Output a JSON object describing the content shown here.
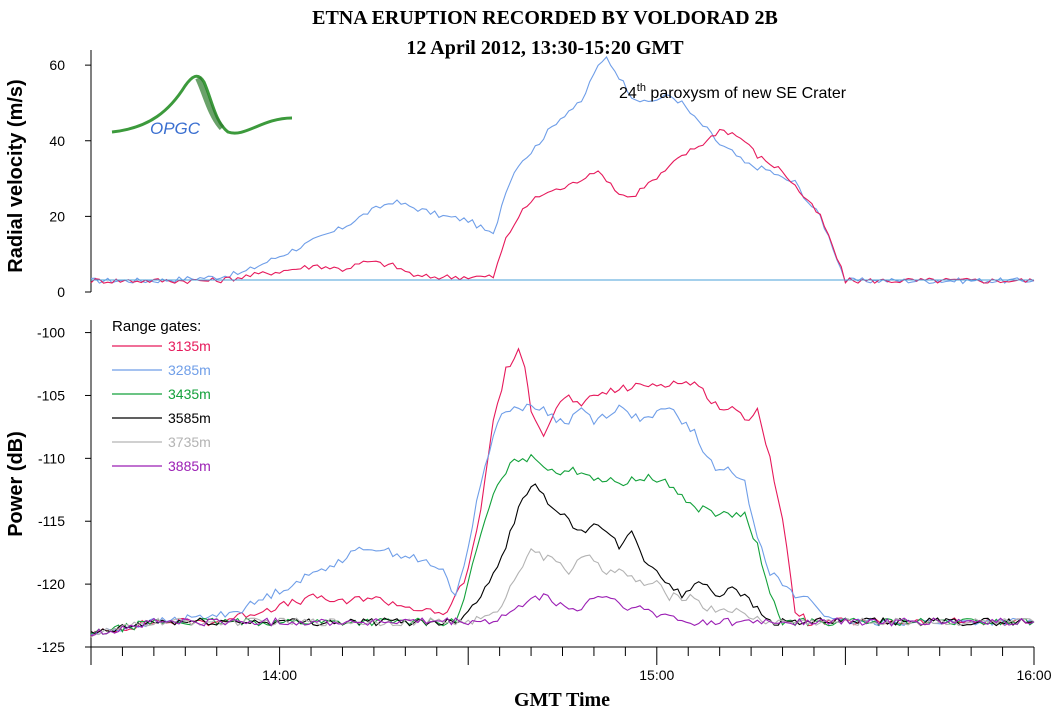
{
  "title_line1": "ETNA ERUPTION RECORDED BY VOLDORAD 2B",
  "title_line2": "12 April 2012, 13:30-15:20 GMT",
  "logo_text": "OPGC",
  "annotation": {
    "prefix": "24",
    "sup": "th",
    "suffix": " paroxysm of new SE Crater"
  },
  "xlabel": "GMT Time",
  "colors": {
    "3135m": "#e6195b",
    "3285m": "#6f9ee8",
    "3435m": "#13a13b",
    "3585m": "#000000",
    "3735m": "#b3b3b3",
    "3885m": "#9b1fb4",
    "velocity_baseline": "#4aa0d8",
    "logo": "#3c9a3c"
  },
  "chart_data": [
    {
      "type": "line",
      "panel": "top",
      "ylabel": "Radial velocity (m/s)",
      "xunit": "GMT time (minutes after 13:30)",
      "xlim": [
        0,
        150
      ],
      "ylim": [
        0,
        64
      ],
      "yticks": [
        0,
        20,
        40,
        60
      ],
      "series": [
        {
          "key": "3285m",
          "x": [
            0,
            10,
            20,
            24,
            28,
            32,
            36,
            40,
            44,
            48,
            52,
            56,
            60,
            64,
            66,
            68,
            70,
            72,
            74,
            76,
            78,
            80,
            82,
            84,
            86,
            88,
            90,
            92,
            94,
            96,
            98,
            100,
            102,
            104,
            106,
            108,
            110,
            112,
            114,
            116,
            118,
            120,
            122,
            124,
            126,
            128,
            130,
            150
          ],
          "y": [
            3,
            3,
            4,
            5,
            8,
            11,
            14,
            17,
            21,
            24,
            22,
            20,
            19,
            15,
            27,
            34,
            37,
            41,
            45,
            48,
            50,
            58,
            62,
            57,
            52,
            50,
            51,
            52,
            50,
            46,
            43,
            39,
            37,
            34,
            33,
            32,
            30,
            29,
            24,
            20,
            12,
            3,
            3,
            3,
            3,
            3,
            3,
            3
          ]
        },
        {
          "key": "3135m",
          "x": [
            0,
            10,
            20,
            24,
            28,
            32,
            36,
            40,
            44,
            48,
            52,
            56,
            60,
            64,
            66,
            68,
            70,
            72,
            74,
            76,
            78,
            80,
            82,
            84,
            86,
            88,
            90,
            92,
            94,
            96,
            98,
            100,
            102,
            104,
            106,
            108,
            110,
            112,
            114,
            116,
            118,
            120,
            122,
            150
          ],
          "y": [
            3,
            3,
            3,
            4,
            5,
            6,
            7,
            6,
            8,
            7,
            4,
            4,
            4,
            4,
            14,
            20,
            24,
            26,
            27,
            28,
            30,
            32,
            30,
            26,
            25,
            28,
            30,
            33,
            36,
            38,
            40,
            43,
            42,
            40,
            36,
            34,
            32,
            28,
            24,
            20,
            12,
            3,
            3,
            3
          ]
        }
      ]
    },
    {
      "type": "line",
      "panel": "bottom",
      "ylabel": "Power (dB)",
      "xunit": "GMT time (minutes after 13:30)",
      "xlim": [
        0,
        150
      ],
      "ylim": [
        -125,
        -99
      ],
      "yticks": [
        -125,
        -120,
        -115,
        -110,
        -105,
        -100
      ],
      "xticks": [
        {
          "v": 30,
          "label": "14:00"
        },
        {
          "v": 90,
          "label": "15:00"
        },
        {
          "v": 150,
          "label": "16:00"
        }
      ],
      "legend_title": "Range gates:",
      "legend_position": "top-left",
      "series": [
        {
          "name": "3135m",
          "x": [
            0,
            5,
            10,
            20,
            24,
            28,
            32,
            36,
            40,
            44,
            48,
            52,
            56,
            58,
            60,
            62,
            64,
            66,
            68,
            69,
            70,
            72,
            74,
            76,
            78,
            80,
            84,
            88,
            92,
            96,
            98,
            100,
            102,
            104,
            106,
            108,
            110,
            112,
            114,
            116,
            118,
            120,
            124,
            130,
            140,
            150
          ],
          "y": [
            -124,
            -123.5,
            -123,
            -123,
            -122.5,
            -122,
            -121.5,
            -121,
            -121.5,
            -121,
            -121.5,
            -122,
            -122.5,
            -121,
            -119,
            -114,
            -107,
            -103,
            -101.5,
            -103,
            -106,
            -108,
            -106,
            -105,
            -106,
            -105,
            -104.5,
            -104.2,
            -104,
            -104,
            -105,
            -106,
            -106,
            -107,
            -106,
            -110,
            -115,
            -122,
            -123,
            -123,
            -123,
            -123,
            -123,
            -123,
            -123,
            -123
          ]
        },
        {
          "name": "3285m",
          "x": [
            0,
            5,
            10,
            20,
            24,
            28,
            32,
            36,
            40,
            44,
            48,
            52,
            56,
            58,
            60,
            62,
            64,
            66,
            68,
            70,
            72,
            74,
            76,
            78,
            80,
            84,
            88,
            92,
            96,
            98,
            100,
            102,
            104,
            106,
            108,
            110,
            112,
            114,
            116,
            118,
            120,
            124,
            130,
            140,
            150
          ],
          "y": [
            -124,
            -123.5,
            -123,
            -122.5,
            -122,
            -121,
            -120,
            -119,
            -118,
            -117,
            -117.5,
            -118,
            -119,
            -121,
            -117,
            -112,
            -108,
            -106,
            -106,
            -106,
            -106,
            -107,
            -107,
            -106,
            -107,
            -106,
            -107,
            -106,
            -108,
            -110,
            -111,
            -111,
            -112,
            -116,
            -119,
            -120,
            -121,
            -121,
            -122,
            -123,
            -123,
            -123,
            -123,
            -123,
            -123
          ]
        },
        {
          "name": "3435m",
          "x": [
            0,
            5,
            10,
            20,
            30,
            40,
            50,
            56,
            58,
            60,
            62,
            64,
            66,
            68,
            70,
            72,
            74,
            76,
            78,
            80,
            84,
            88,
            92,
            96,
            98,
            100,
            102,
            104,
            106,
            108,
            110,
            112,
            114,
            116,
            118,
            120,
            124,
            130,
            140,
            150
          ],
          "y": [
            -124,
            -123.5,
            -123,
            -123,
            -123,
            -123,
            -123,
            -123,
            -123,
            -120,
            -116,
            -113,
            -111,
            -110,
            -110,
            -110.5,
            -111,
            -111,
            -111,
            -111.5,
            -112,
            -111.5,
            -112,
            -114,
            -114,
            -114.5,
            -114.5,
            -114.5,
            -117,
            -121,
            -123,
            -123,
            -123,
            -123,
            -123,
            -123,
            -123,
            -123,
            -123,
            -123
          ]
        },
        {
          "name": "3585m",
          "x": [
            0,
            5,
            10,
            20,
            30,
            40,
            50,
            58,
            60,
            62,
            64,
            66,
            68,
            70,
            72,
            74,
            76,
            78,
            80,
            82,
            84,
            86,
            88,
            90,
            92,
            94,
            96,
            98,
            100,
            102,
            104,
            106,
            108,
            110,
            120,
            130,
            140,
            150
          ],
          "y": [
            -124,
            -123.5,
            -123,
            -123,
            -123,
            -123,
            -123,
            -123,
            -122,
            -121,
            -119,
            -117,
            -114,
            -112,
            -113,
            -114,
            -115,
            -116,
            -115,
            -116,
            -117,
            -116,
            -118,
            -119,
            -120,
            -121,
            -120,
            -120,
            -121,
            -120,
            -121,
            -122,
            -123,
            -123,
            -123,
            -123,
            -123,
            -123
          ]
        },
        {
          "name": "3735m",
          "x": [
            0,
            5,
            10,
            20,
            30,
            40,
            50,
            60,
            64,
            66,
            68,
            70,
            72,
            74,
            76,
            78,
            80,
            82,
            84,
            86,
            88,
            90,
            92,
            94,
            96,
            98,
            100,
            102,
            104,
            108,
            112,
            120,
            130,
            140,
            150
          ],
          "y": [
            -124,
            -123.5,
            -123,
            -123,
            -123,
            -123,
            -123,
            -123,
            -122.5,
            -121,
            -119,
            -117,
            -118,
            -118,
            -119,
            -118,
            -118,
            -119,
            -119,
            -119.5,
            -120,
            -120,
            -121,
            -121,
            -121,
            -122,
            -122,
            -122,
            -122.5,
            -123,
            -123,
            -123,
            -123,
            -123,
            -123
          ]
        },
        {
          "name": "3885m",
          "x": [
            0,
            5,
            10,
            20,
            30,
            40,
            50,
            60,
            64,
            66,
            68,
            70,
            72,
            74,
            76,
            78,
            80,
            82,
            84,
            86,
            88,
            90,
            92,
            94,
            96,
            98,
            100,
            102,
            104,
            108,
            112,
            120,
            130,
            140,
            150
          ],
          "y": [
            -124,
            -123.5,
            -123,
            -123,
            -123,
            -123,
            -123,
            -123,
            -123,
            -122.5,
            -122,
            -121,
            -121,
            -121.5,
            -122,
            -122,
            -121,
            -121,
            -121.5,
            -122,
            -122,
            -122.5,
            -122.5,
            -123,
            -123,
            -123,
            -123,
            -123,
            -123,
            -123,
            -123,
            -123,
            -123,
            -123,
            -123
          ]
        }
      ]
    }
  ]
}
